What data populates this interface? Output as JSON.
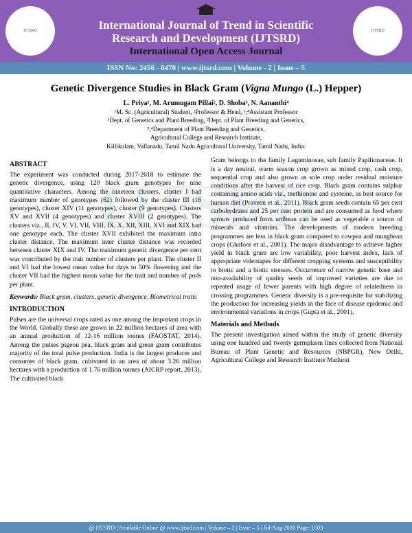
{
  "header": {
    "journal_line1": "International Journal of Trend in Scientific",
    "journal_line2": "Research and Development  (IJTSRD)",
    "open_access": "International Open Access Journal",
    "info_bar": "ISSN No: 2456 - 6470   |   www.ijtsrd.com   |   Volume - 2 | Issue – 5"
  },
  "article": {
    "title_plain": "Genetic Divergence Studies in Black Gram (",
    "title_sci": "Vigna Mungo",
    "title_tail": " (L.) Hepper)",
    "authors": "L. Priya¹, M. Arumugam Pillai², D. Shoba³, N. Aananthi⁴",
    "affil1": "¹M. Sc. (Agricultural) Student, ²Professor & Head, ³,⁴Assistant Professor",
    "affil2": "¹Dept. of Genetics and Plant Breeding, ²Dept. of Plant Breeding and Genetics,",
    "affil3": "³,⁴Department of Plant Breeding and Genetics,",
    "affil4": "Agricultural College and Research Institute,",
    "affil5": "Killikulam, Vallanadu, Tamil Nadu Agricultural University, Tamil Nadu, India."
  },
  "body": {
    "abstract_h": "ABSTRACT",
    "abstract": "The experiment was conducted during 2017-2018 to estimate the genetic divergence, using 120 black gram genotypes for nine quantitative characters. Among the nineteen clusters, cluster I had maximum number of genotypes (62) followed by the cluster III (16 genotypes), cluster XIV (11 genotypes), cluster (9 genotypes). Clusters XV and XVII (4 genotypes) and cluster XVIII (2 genotypes). The clusters viz., II, IV, V, VI, VII, VIII, IX, X, XII, XIII, XVI and XIX had one genotype each. The cluster XVII exhibited the maximum intra cluster distance. The maximum inter cluster distance was recorded between cluster XIX and IV. The maximum genetic divergence per cent was contributed by the trait number of clusters per plant. The cluster II and VI had the lowest mean value for days to 50% flowering and the cluster VII had the highest mean value for the trait and number of pods per plant.",
    "keywords_label": "Keywords:",
    "keywords": " Black gram, clusters, genetic divergence, Biometrical traits",
    "intro_h": "INTRODUCTION",
    "intro": "Pulses are the universal crops rated as one among the important crops in the World. Globally these are grown in 22 million hectares of area with an annual production of 12-16 million tonnes (FAOSTAT, 2014). Among the pulses pigeon pea, black gram and green gram contributes majority of the total pulse production. India is the largest producer and consumer of black gram, cultivated in an area of about 3.26 million hectares with a production of 1.76 million tonnes (AICRP report, 2013). The cultivated black",
    "col2p1": "Gram belongs to the family Leguminosae, sub family Papilionaceae. It is a day neutral, warm season crop grown as mixed crop, cash crop, sequential crop and also grown as sole crop under residual moisture conditions after the harvest of rice crop. Black gram contains sulphur containing amino acids viz., methionine and cysteine, as best source for human diet (Praveen et al., 2011). Black gram seeds contain 65 per cent carbohydrates and 25 per cent protein and are consumed as food where sprouts produced from urdbean can be used as vegetable a source of minerals and vitamins. The developments of modern breeding programmes are less in black gram compared to cowpea and mungbean crops (Ghafoor et al., 2001). The major disadvantage to achieve higher yield in black gram are low variability, poor harvest index, lack of appropriate videotapes for different cropping systems and susceptibility to biotic and a biotic stresses. Occurrence of narrow genetic base and non-availability of quality seeds of improved varieties are due to repeated usage of fewer parents with high degree of relatedness in crossing programmes. Genetic diversity is a pre-requisite for stabilizing the production for increasing yields in the face of disease epidemic and environmental variations in crops (Gupta et al., 2001).",
    "mm_h": "Materials and Methods",
    "mm": "The present investigation aimed within the study of genetic diversity using one hundred and twenty germplasm lines collected from National Bureau of Plant Genetic and Resources (NBPGR), New Delhi, Agricultural College and Research Institute Madurai"
  },
  "footer": {
    "text": "@ IJTSRD  |  Available Online @ www.ijtsrd.com  |  Volume – 2  |  Issue – 5  | Jul-Aug 2018    Page: 1503"
  },
  "style": {
    "header_bg": "#8b5cb8",
    "subband_bg": "#5a8db8"
  }
}
